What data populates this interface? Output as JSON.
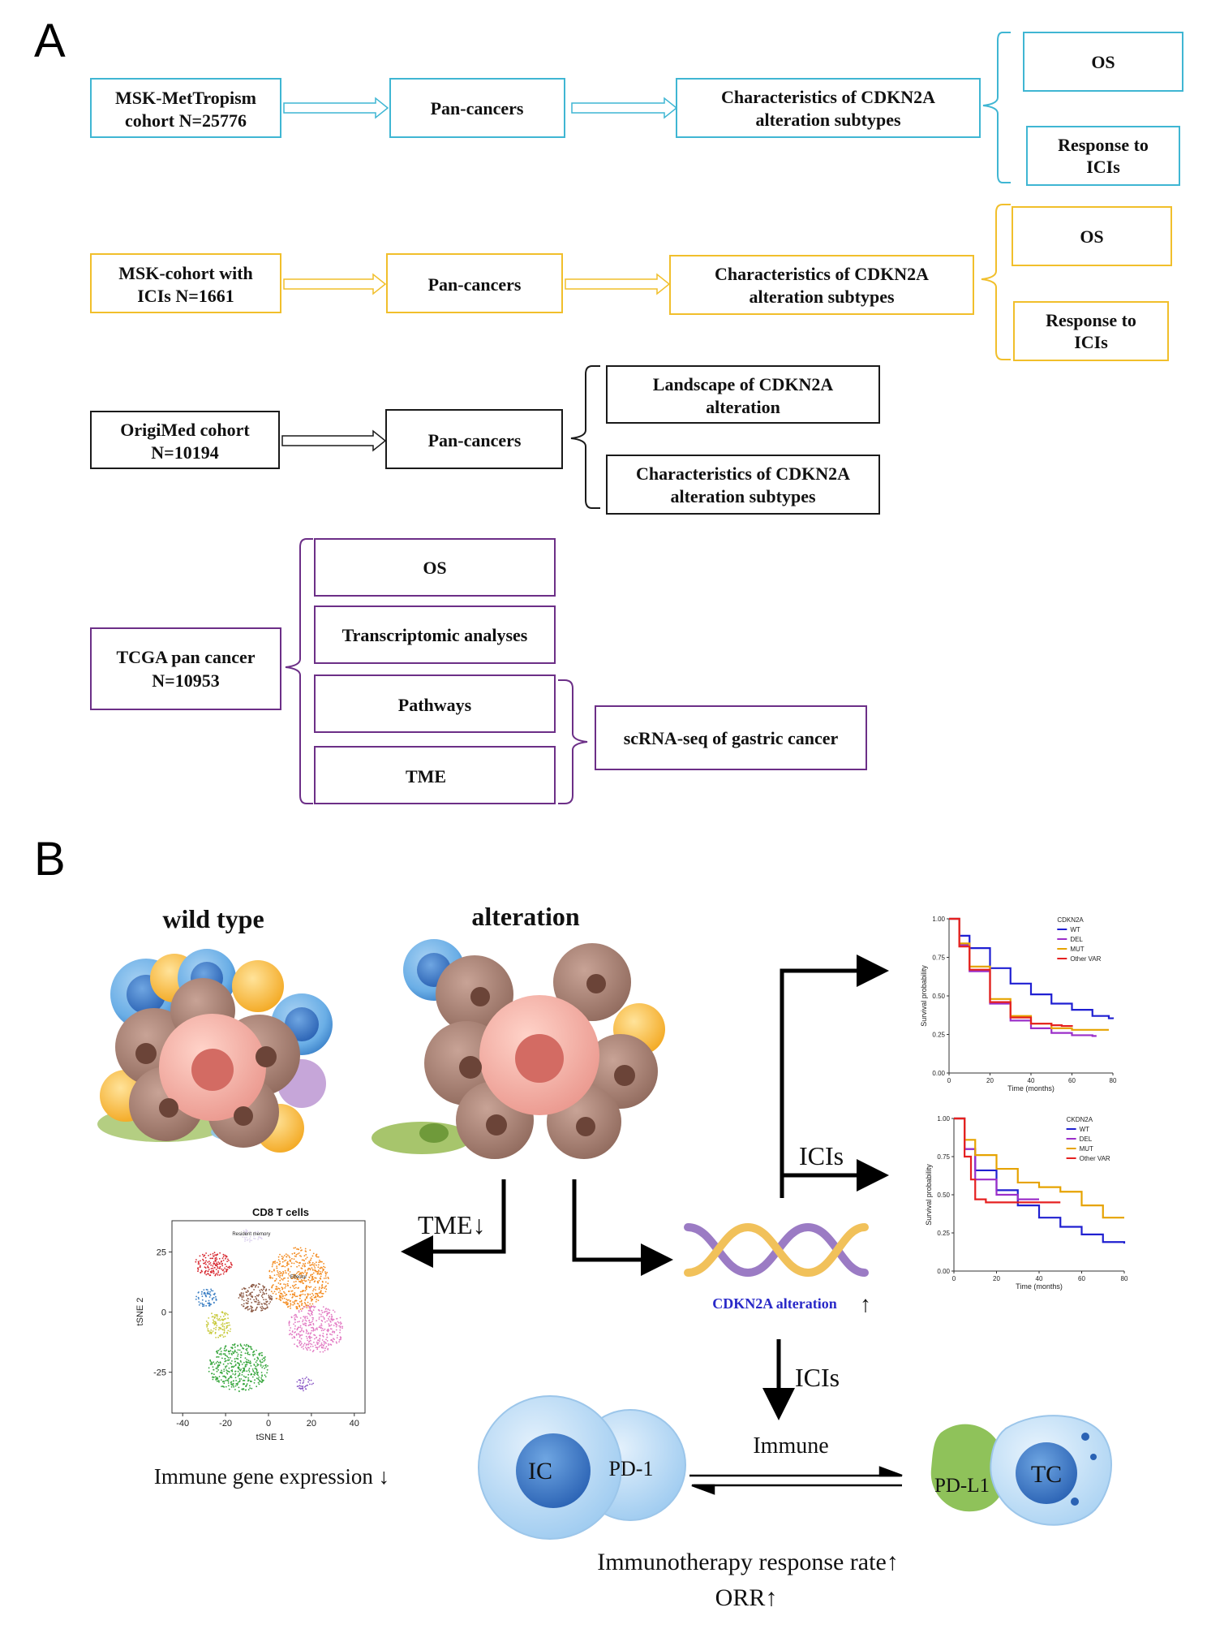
{
  "panel_a": {
    "label": "A",
    "colors": {
      "blue": "#3fb6d3",
      "yellow": "#f1bf2b",
      "black": "#1a1a1a",
      "purple": "#6c2f87"
    },
    "row1": {
      "cohort": [
        "MSK-MetTropism",
        "cohort N=25776"
      ],
      "mid": "Pan-cancers",
      "char": [
        "Characteristics of CDKN2A",
        "alteration subtypes"
      ],
      "out1": "OS",
      "out2": [
        "Response to",
        "ICIs"
      ]
    },
    "row2": {
      "cohort": [
        "MSK-cohort with",
        "ICIs N=1661"
      ],
      "mid": "Pan-cancers",
      "char": [
        "Characteristics of CDKN2A",
        "alteration subtypes"
      ],
      "out1": "OS",
      "out2": [
        "Response to",
        "ICIs"
      ]
    },
    "row3": {
      "cohort": [
        "OrigiMed cohort",
        "N=10194"
      ],
      "mid": "Pan-cancers",
      "out1": [
        "Landscape of CDKN2A",
        "alteration"
      ],
      "out2": [
        "Characteristics of CDKN2A",
        "alteration subtypes"
      ]
    },
    "row4": {
      "cohort": [
        "TCGA pan cancer",
        "N=10953"
      ],
      "items": [
        "OS",
        "Transcriptomic analyses",
        "Pathways",
        "TME"
      ],
      "sc": "scRNA-seq of gastric cancer"
    }
  },
  "panel_b": {
    "label": "B",
    "wild_type": "wild type",
    "alteration": "alteration",
    "tme": "TME↓",
    "icis_top": "ICIs",
    "icis_mid": "ICIs",
    "cdkn2a": "CDKN2A alteration",
    "cdkn2a_arrow": "↑",
    "immune": "Immune",
    "ic": "IC",
    "pd1": "PD-1",
    "pdl1": "PD-L1",
    "tc": "TC",
    "immune_expr": "Immune gene expression ↓",
    "response": "Immunotherapy response rate↑",
    "orr": "ORR↑",
    "colors": {
      "dna_purple": "#9b7bc4",
      "dna_yellow": "#f1c15a",
      "cdkn2a_text": "#2929c8"
    }
  },
  "chart_data": [
    {
      "type": "scatter",
      "title": "CD8 T cells",
      "xlabel": "tSNE 1",
      "ylabel": "tSNE 2",
      "xlim": [
        -45,
        45
      ],
      "ylim": [
        -42,
        38
      ],
      "xticks": [
        "-40",
        "-20",
        "0",
        "20",
        "40"
      ],
      "yticks": [
        "25",
        "0",
        "-25"
      ],
      "clusters": [
        {
          "name": "Resident memory",
          "cx": -8,
          "cy": 32,
          "rx": 6,
          "ry": 3,
          "color": "#e0d6f0",
          "n": 40
        },
        {
          "name": "",
          "cx": -26,
          "cy": 20,
          "rx": 9,
          "ry": 5,
          "color": "#d7262e",
          "n": 160
        },
        {
          "name": "Effector",
          "cx": 14,
          "cy": 14,
          "rx": 14,
          "ry": 13,
          "color": "#f38b20",
          "n": 520
        },
        {
          "name": "",
          "cx": -29,
          "cy": 6,
          "rx": 5,
          "ry": 4,
          "color": "#3b7fc4",
          "n": 70
        },
        {
          "name": "",
          "cx": -6,
          "cy": 6,
          "rx": 8,
          "ry": 6,
          "color": "#8c5a45",
          "n": 160
        },
        {
          "name": "",
          "cx": -23,
          "cy": -5,
          "rx": 6,
          "ry": 6,
          "color": "#c7c93a",
          "n": 110
        },
        {
          "name": "",
          "cx": 22,
          "cy": -7,
          "rx": 13,
          "ry": 10,
          "color": "#e27ac3",
          "n": 360
        },
        {
          "name": "",
          "cx": -14,
          "cy": -23,
          "rx": 14,
          "ry": 10,
          "color": "#36a63c",
          "n": 420
        },
        {
          "name": "",
          "cx": 17,
          "cy": -30,
          "rx": 4,
          "ry": 3,
          "color": "#8d5cc7",
          "n": 40
        }
      ]
    },
    {
      "type": "line",
      "ylabel": "Survival probability",
      "xlabel": "Time (months)",
      "xlim": [
        0,
        80
      ],
      "ylim": [
        0,
        1
      ],
      "xticks": [
        "0",
        "20",
        "40",
        "60",
        "80"
      ],
      "yticks": [
        "0.00",
        "0.25",
        "0.50",
        "0.75",
        "1.00"
      ],
      "legend_title": "CDKN2A",
      "legend_position": "top-right",
      "series": [
        {
          "name": "WT",
          "color": "#1f1fd2",
          "x": [
            0,
            5,
            10,
            20,
            30,
            40,
            50,
            60,
            70,
            78,
            80
          ],
          "y": [
            1.0,
            0.89,
            0.81,
            0.68,
            0.58,
            0.51,
            0.45,
            0.41,
            0.37,
            0.355,
            0.35
          ]
        },
        {
          "name": "DEL",
          "color": "#9b2fc9",
          "x": [
            0,
            5,
            10,
            20,
            30,
            40,
            50,
            60,
            70,
            72
          ],
          "y": [
            1.0,
            0.83,
            0.66,
            0.45,
            0.34,
            0.29,
            0.26,
            0.245,
            0.24,
            0.24
          ]
        },
        {
          "name": "MUT",
          "color": "#e6a300",
          "x": [
            0,
            5,
            10,
            20,
            30,
            40,
            50,
            60,
            70,
            78
          ],
          "y": [
            1.0,
            0.84,
            0.69,
            0.48,
            0.37,
            0.32,
            0.29,
            0.28,
            0.28,
            0.28
          ]
        },
        {
          "name": "Other VAR",
          "color": "#e52020",
          "x": [
            0,
            5,
            10,
            20,
            30,
            40,
            50,
            55,
            60
          ],
          "y": [
            1.0,
            0.82,
            0.67,
            0.46,
            0.36,
            0.32,
            0.31,
            0.305,
            0.3
          ]
        }
      ]
    },
    {
      "type": "line",
      "ylabel": "Survival probability",
      "xlabel": "Time (months)",
      "xlim": [
        0,
        80
      ],
      "ylim": [
        0,
        1
      ],
      "xticks": [
        "0",
        "20",
        "40",
        "60",
        "80"
      ],
      "yticks": [
        "0.00",
        "0.25",
        "0.50",
        "0.75",
        "1.00"
      ],
      "legend_title": "CKDN2A",
      "legend_position": "top-right",
      "series": [
        {
          "name": "WT",
          "color": "#2020d0",
          "x": [
            0,
            5,
            10,
            20,
            30,
            40,
            50,
            60,
            70,
            80
          ],
          "y": [
            1.0,
            0.8,
            0.66,
            0.53,
            0.43,
            0.35,
            0.29,
            0.24,
            0.19,
            0.18
          ]
        },
        {
          "name": "DEL",
          "color": "#9b2fc9",
          "x": [
            0,
            5,
            10,
            20,
            30,
            40
          ],
          "y": [
            1.0,
            0.8,
            0.6,
            0.5,
            0.47,
            0.47
          ]
        },
        {
          "name": "MUT",
          "color": "#e6a300",
          "x": [
            0,
            5,
            10,
            20,
            30,
            40,
            50,
            60,
            70,
            80
          ],
          "y": [
            1.0,
            0.86,
            0.76,
            0.67,
            0.58,
            0.55,
            0.52,
            0.43,
            0.35,
            0.35
          ]
        },
        {
          "name": "Other VAR",
          "color": "#e52020",
          "x": [
            0,
            5,
            8,
            10,
            15,
            20,
            30,
            40,
            50
          ],
          "y": [
            1.0,
            0.75,
            0.6,
            0.47,
            0.45,
            0.45,
            0.45,
            0.45,
            0.45
          ]
        }
      ]
    }
  ]
}
